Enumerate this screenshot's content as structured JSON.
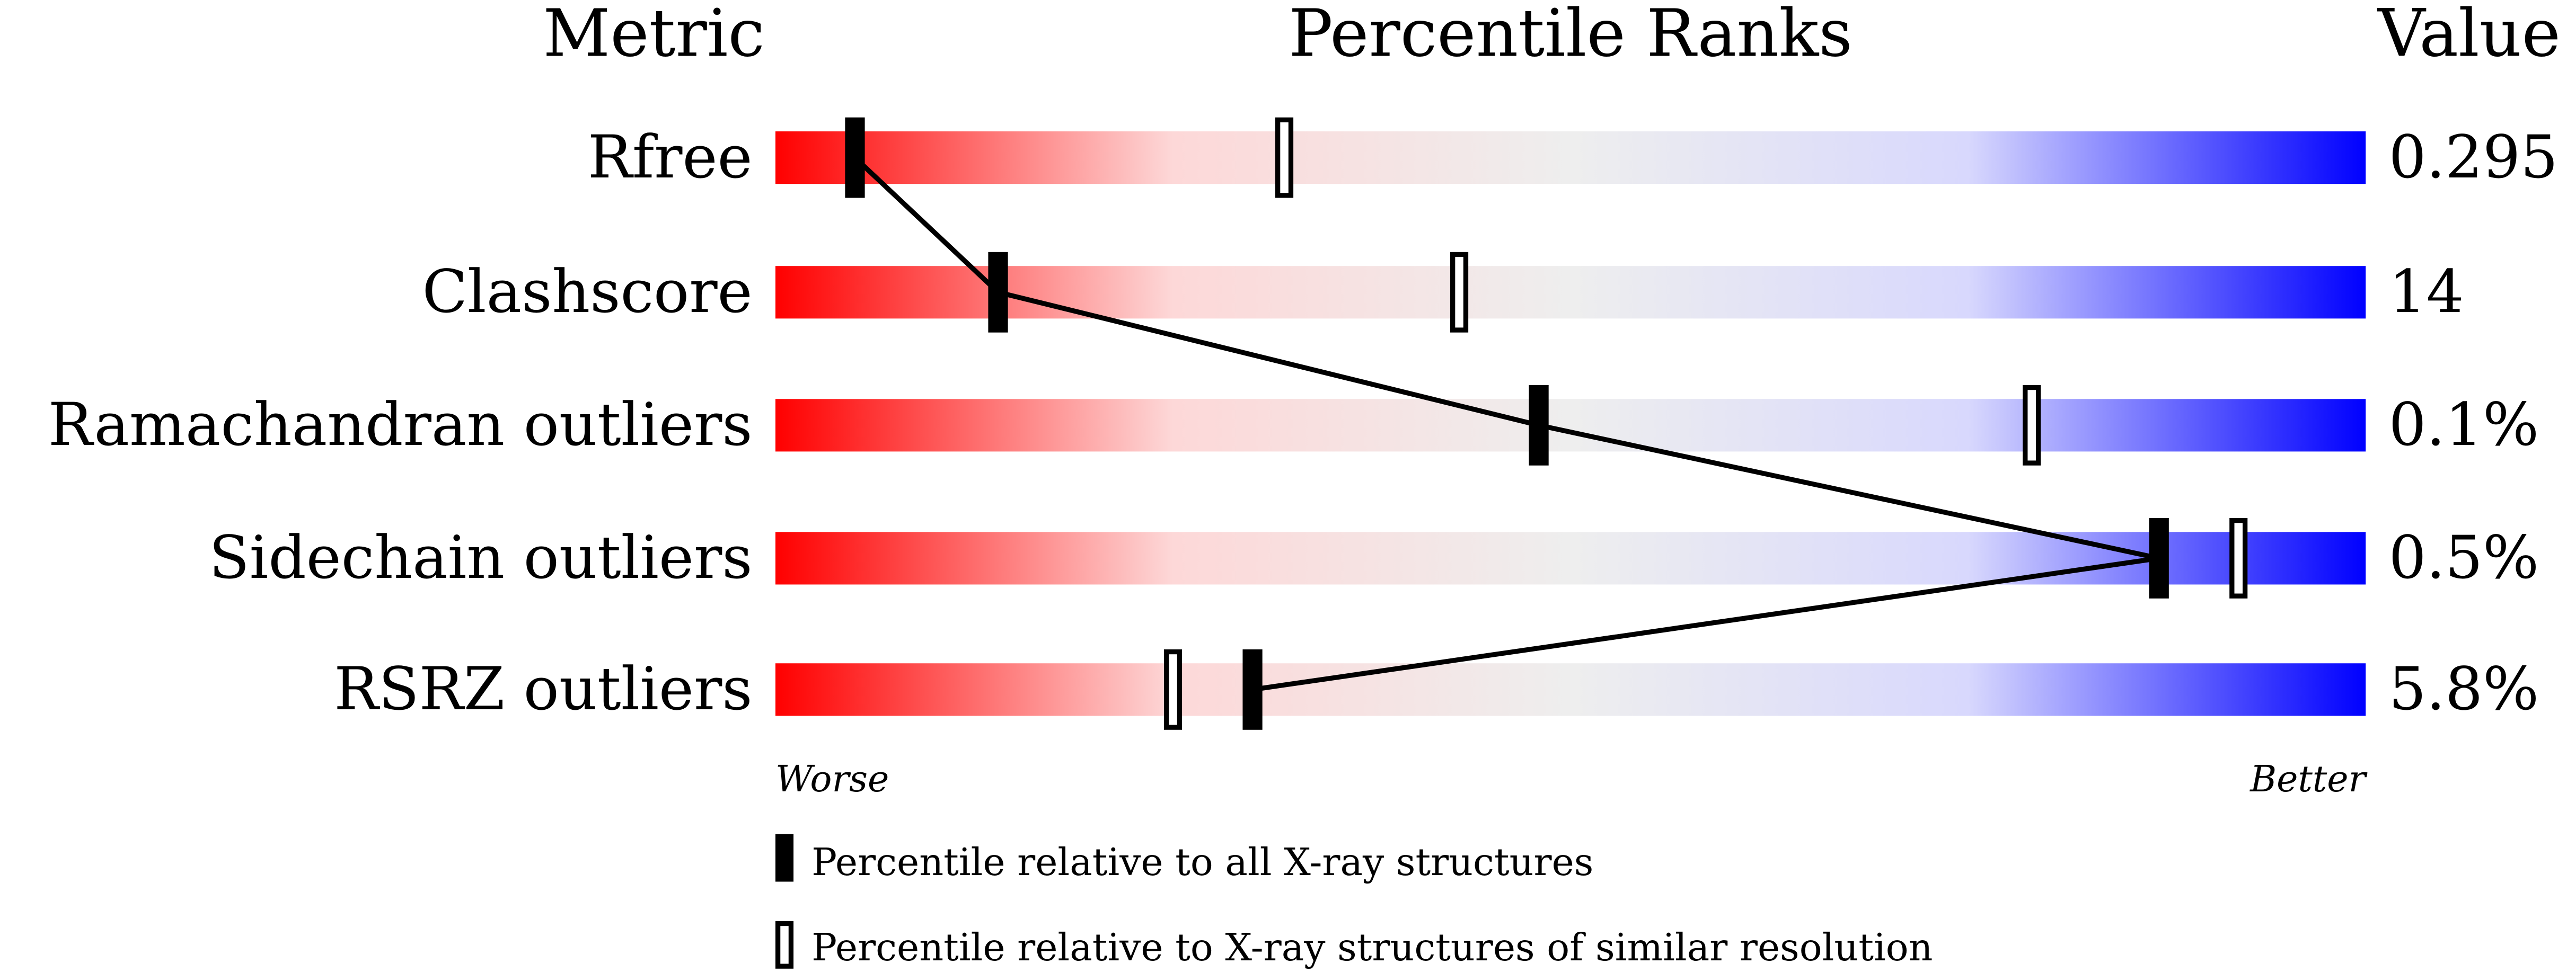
{
  "chart_data": {
    "type": "percentile-slider",
    "headers": {
      "metric": "Metric",
      "ranks": "Percentile Ranks",
      "value": "Value"
    },
    "xlim": [
      0,
      100
    ],
    "axis_labels": {
      "left": "Worse",
      "right": "Better"
    },
    "gradient_colors": [
      "#ff0000",
      "#fdd8d8",
      "#eeeeee",
      "#d8d8fd",
      "#0000ff"
    ],
    "rows": [
      {
        "metric": "Rfree",
        "value": "0.295",
        "percentile_all": 5,
        "percentile_similar": 32
      },
      {
        "metric": "Clashscore",
        "value": "14",
        "percentile_all": 14,
        "percentile_similar": 43
      },
      {
        "metric": "Ramachandran outliers",
        "value": "0.1%",
        "percentile_all": 48,
        "percentile_similar": 79
      },
      {
        "metric": "Sidechain outliers",
        "value": "0.5%",
        "percentile_all": 87,
        "percentile_similar": 92
      },
      {
        "metric": "RSRZ outliers",
        "value": "5.8%",
        "percentile_all": 30,
        "percentile_similar": 25
      }
    ],
    "legend": [
      {
        "marker": "filled",
        "label": "Percentile relative to all X-ray structures"
      },
      {
        "marker": "open",
        "label": "Percentile relative to X-ray structures of similar resolution"
      }
    ]
  }
}
